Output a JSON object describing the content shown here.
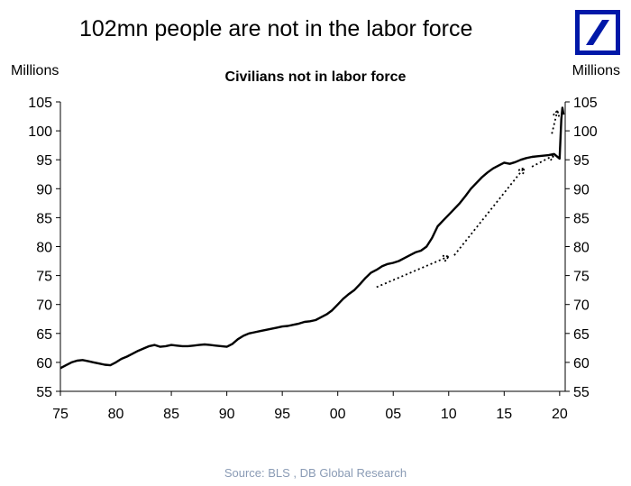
{
  "headline": "102mn people are not in the labor force",
  "brand_color": "#0018a8",
  "logo_icon": "deutsche-bank-slash-square-icon",
  "source": "Source: BLS , DB Global Research",
  "chart_data": {
    "type": "line",
    "title": "Civilians not in labor force",
    "ylabel_left": "Millions",
    "ylabel_right": "Millions",
    "xlabel": "",
    "x_ticks": [
      "75",
      "80",
      "85",
      "90",
      "95",
      "00",
      "05",
      "10",
      "15",
      "20"
    ],
    "y_ticks": [
      "55",
      "60",
      "65",
      "70",
      "75",
      "80",
      "85",
      "90",
      "95",
      "100",
      "105"
    ],
    "xlim": [
      1975,
      2020.5
    ],
    "ylim": [
      55,
      105
    ],
    "grid": false,
    "series": [
      {
        "color": "#000000",
        "x": [
          1975.0,
          1975.5,
          1976.0,
          1976.5,
          1977.0,
          1977.5,
          1978.0,
          1978.5,
          1979.0,
          1979.5,
          1980.0,
          1980.5,
          1981.0,
          1981.5,
          1982.0,
          1982.5,
          1983.0,
          1983.5,
          1984.0,
          1984.5,
          1985.0,
          1985.5,
          1986.0,
          1986.5,
          1987.0,
          1987.5,
          1988.0,
          1988.5,
          1989.0,
          1989.5,
          1990.0,
          1990.5,
          1991.0,
          1991.5,
          1992.0,
          1992.5,
          1993.0,
          1993.5,
          1994.0,
          1994.5,
          1995.0,
          1995.5,
          1996.0,
          1996.5,
          1997.0,
          1997.5,
          1998.0,
          1998.5,
          1999.0,
          1999.5,
          2000.0,
          2000.5,
          2001.0,
          2001.5,
          2002.0,
          2002.5,
          2003.0,
          2003.5,
          2004.0,
          2004.5,
          2005.0,
          2005.5,
          2006.0,
          2006.5,
          2007.0,
          2007.5,
          2008.0,
          2008.5,
          2009.0,
          2009.5,
          2010.0,
          2010.5,
          2011.0,
          2011.5,
          2012.0,
          2012.5,
          2013.0,
          2013.5,
          2014.0,
          2014.5,
          2015.0,
          2015.5,
          2016.0,
          2016.5,
          2017.0,
          2017.5,
          2018.0,
          2018.5,
          2019.0,
          2019.5,
          2020.0,
          2020.15,
          2020.25,
          2020.35
        ],
        "values": [
          59.0,
          59.5,
          60.0,
          60.3,
          60.4,
          60.2,
          60.0,
          59.8,
          59.6,
          59.5,
          60.0,
          60.6,
          61.0,
          61.5,
          62.0,
          62.4,
          62.8,
          63.0,
          62.7,
          62.8,
          63.0,
          62.9,
          62.8,
          62.8,
          62.9,
          63.0,
          63.1,
          63.0,
          62.9,
          62.8,
          62.7,
          63.2,
          64.0,
          64.6,
          65.0,
          65.2,
          65.4,
          65.6,
          65.8,
          66.0,
          66.2,
          66.3,
          66.5,
          66.7,
          67.0,
          67.1,
          67.3,
          67.8,
          68.3,
          69.0,
          70.0,
          71.0,
          71.8,
          72.5,
          73.5,
          74.6,
          75.5,
          76.0,
          76.6,
          77.0,
          77.2,
          77.5,
          78.0,
          78.5,
          79.0,
          79.3,
          80.0,
          81.5,
          83.5,
          84.5,
          85.5,
          86.5,
          87.5,
          88.7,
          90.0,
          91.0,
          92.0,
          92.8,
          93.5,
          94.0,
          94.5,
          94.3,
          94.6,
          95.0,
          95.3,
          95.5,
          95.6,
          95.7,
          95.8,
          96.0,
          95.2,
          102.0,
          104.0,
          102.8
        ]
      }
    ],
    "annotations": [
      {
        "type": "dotted-arrow",
        "from": [
          2003.5,
          73.0
        ],
        "to": [
          2010.0,
          78.3
        ]
      },
      {
        "type": "dotted-arrow",
        "from": [
          2010.5,
          78.5
        ],
        "to": [
          2016.8,
          93.6
        ]
      },
      {
        "type": "dotted-arrow",
        "from": [
          2017.5,
          93.8
        ],
        "to": [
          2019.5,
          95.8
        ]
      },
      {
        "type": "dotted-arrow",
        "from": [
          2019.3,
          99.5
        ],
        "to": [
          2019.8,
          103.5
        ]
      }
    ]
  }
}
